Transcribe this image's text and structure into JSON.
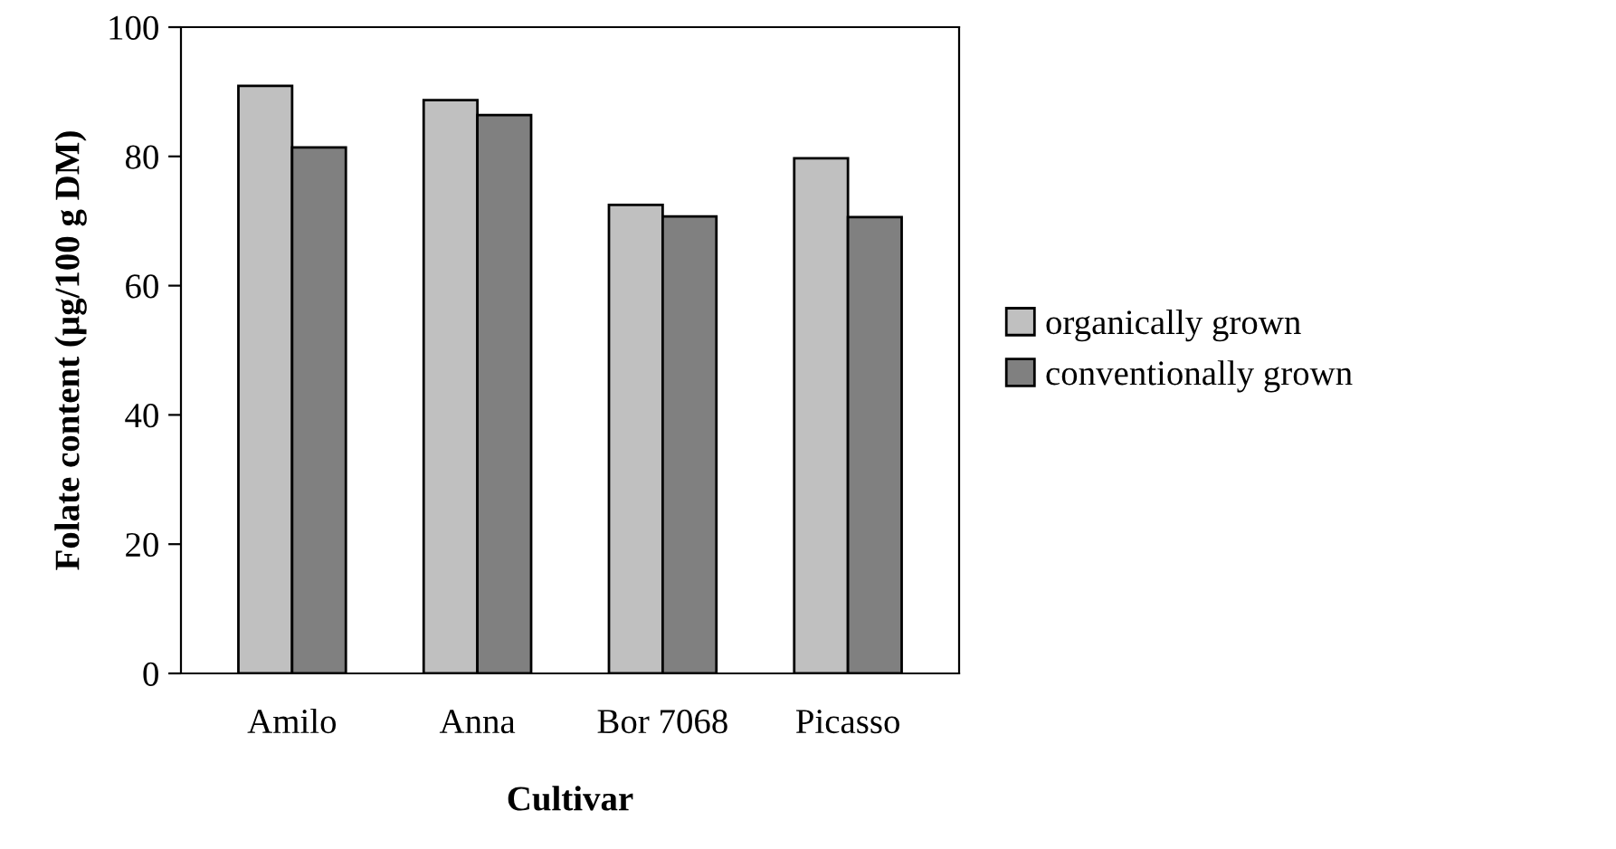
{
  "chart_data": {
    "type": "bar",
    "xlabel": "Cultivar",
    "ylabel": "Folate content (µg/100 g DM)",
    "categories": [
      "Amilo",
      "Anna",
      "Bor 7068",
      "Picasso"
    ],
    "series": [
      {
        "name": "organically grown",
        "color": "#c0c0c0",
        "values": [
          90.9,
          88.7,
          72.5,
          79.7
        ]
      },
      {
        "name": "conventionally grown",
        "color": "#808080",
        "values": [
          81.4,
          86.4,
          70.7,
          70.6
        ]
      }
    ],
    "ylim": [
      0,
      100
    ],
    "yticks": [
      0,
      20,
      40,
      60,
      80,
      100
    ],
    "grid": false,
    "legend": "right"
  }
}
